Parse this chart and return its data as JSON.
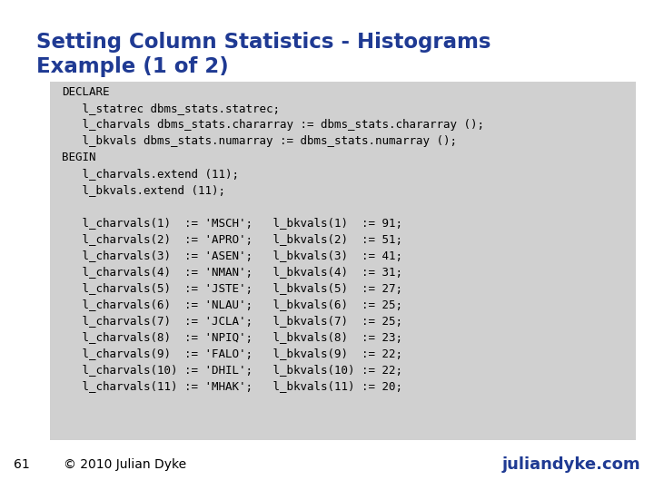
{
  "title_line1": "Setting Column Statistics - Histograms",
  "title_line2": "Example (1 of 2)",
  "title_color": "#1F3A93",
  "bg_color": "#FFFFFF",
  "box_color": "#D0D0D0",
  "slide_number": "61",
  "copyright": "© 2010 Julian Dyke",
  "website": "juliandyke.com",
  "footer_color": "#1F3A93",
  "code_lines": [
    "DECLARE",
    "   l_statrec dbms_stats.statrec;",
    "   l_charvals dbms_stats.chararray := dbms_stats.chararray ();",
    "   l_bkvals dbms_stats.numarray := dbms_stats.numarray ();",
    "BEGIN",
    "   l_charvals.extend (11);",
    "   l_bkvals.extend (11);",
    "",
    "   l_charvals(1)  := 'MSCH';   l_bkvals(1)  := 91;",
    "   l_charvals(2)  := 'APRO';   l_bkvals(2)  := 51;",
    "   l_charvals(3)  := 'ASEN';   l_bkvals(3)  := 41;",
    "   l_charvals(4)  := 'NMAN';   l_bkvals(4)  := 31;",
    "   l_charvals(5)  := 'JSTE';   l_bkvals(5)  := 27;",
    "   l_charvals(6)  := 'NLAU';   l_bkvals(6)  := 25;",
    "   l_charvals(7)  := 'JCLA';   l_bkvals(7)  := 25;",
    "   l_charvals(8)  := 'NPIQ';   l_bkvals(8)  := 23;",
    "   l_charvals(9)  := 'FALO';   l_bkvals(9)  := 22;",
    "   l_charvals(10) := 'DHIL';   l_bkvals(10) := 22;",
    "   l_charvals(11) := 'MHAK';   l_bkvals(11) := 20;"
  ],
  "code_fontsize": 9.0,
  "title_fontsize": 16.5
}
